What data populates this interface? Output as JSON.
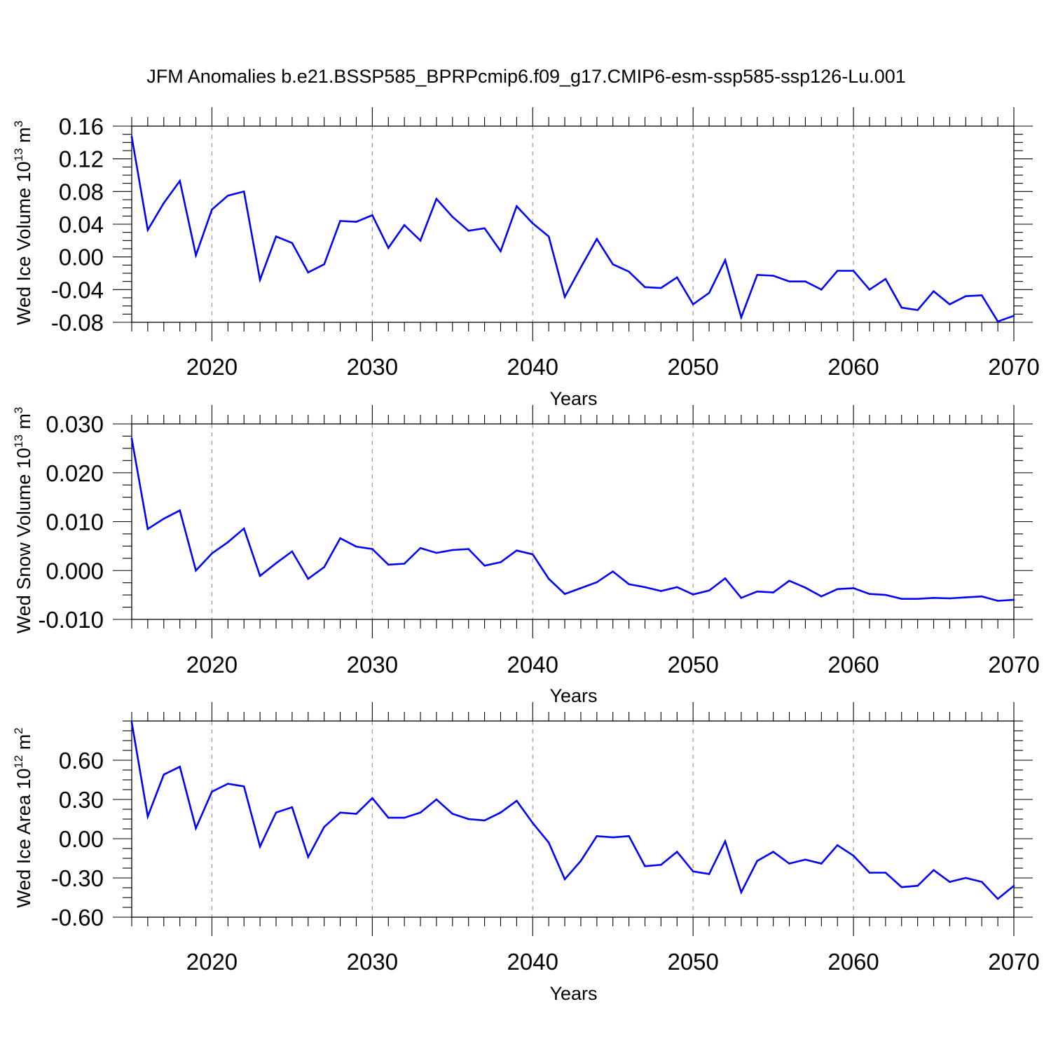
{
  "title": "JFM Anomalies b.e21.BSSP585_BPRPcmip6.f09_g17.CMIP6-esm-ssp585-ssp126-Lu.001",
  "colors": {
    "series": "#0000ff",
    "axis": "#000000",
    "gridline": "#999999"
  },
  "chart_data": [
    {
      "type": "line",
      "ylabel": {
        "main": "Wed Ice Volume 10",
        "sup": "13",
        "unit": " m",
        "unit_sup": "3"
      },
      "xlabel": "Years",
      "xlim": [
        2015,
        2070
      ],
      "ylim": [
        -0.08,
        0.16
      ],
      "xticks": [
        2020,
        2030,
        2040,
        2050,
        2060,
        2070
      ],
      "yticks": [
        "0.16",
        "0.12",
        "0.08",
        "0.04",
        "0.00",
        "-0.04",
        "-0.08"
      ],
      "ytick_values": [
        0.16,
        0.12,
        0.08,
        0.04,
        0.0,
        -0.04,
        -0.08
      ],
      "grid": "vertical dashed at major x ticks",
      "x": [
        2015,
        2016,
        2017,
        2018,
        2019,
        2020,
        2021,
        2022,
        2023,
        2024,
        2025,
        2026,
        2027,
        2028,
        2029,
        2030,
        2031,
        2032,
        2033,
        2034,
        2035,
        2036,
        2037,
        2038,
        2039,
        2040,
        2041,
        2042,
        2043,
        2044,
        2045,
        2046,
        2047,
        2048,
        2049,
        2050,
        2051,
        2052,
        2053,
        2054,
        2055,
        2056,
        2057,
        2058,
        2059,
        2060,
        2061,
        2062,
        2063,
        2064,
        2065,
        2066,
        2067,
        2068,
        2069,
        2070
      ],
      "y": [
        0.147,
        0.033,
        0.066,
        0.093,
        0.002,
        0.058,
        0.075,
        0.08,
        -0.028,
        0.025,
        0.017,
        -0.019,
        -0.009,
        0.044,
        0.043,
        0.051,
        0.011,
        0.039,
        0.02,
        0.071,
        0.049,
        0.032,
        0.035,
        0.007,
        0.062,
        0.041,
        0.025,
        -0.049,
        -0.013,
        0.022,
        -0.009,
        -0.018,
        -0.037,
        -0.038,
        -0.025,
        -0.058,
        -0.044,
        -0.004,
        -0.074,
        -0.022,
        -0.023,
        -0.03,
        -0.03,
        -0.04,
        -0.017,
        -0.017,
        -0.04,
        -0.027,
        -0.062,
        -0.065,
        -0.042,
        -0.058,
        -0.048,
        -0.047,
        -0.079,
        -0.072
      ]
    },
    {
      "type": "line",
      "ylabel": {
        "main": "Wed Snow Volume 10",
        "sup": "13",
        "unit": " m",
        "unit_sup": "3"
      },
      "xlabel": "Years",
      "xlim": [
        2015,
        2070
      ],
      "ylim": [
        -0.01,
        0.03
      ],
      "xticks": [
        2020,
        2030,
        2040,
        2050,
        2060,
        2070
      ],
      "yticks": [
        "0.030",
        "0.020",
        "0.010",
        "0.000",
        "-0.010"
      ],
      "ytick_values": [
        0.03,
        0.02,
        0.01,
        0.0,
        -0.01
      ],
      "grid": "vertical dashed at major x ticks",
      "x": [
        2015,
        2016,
        2017,
        2018,
        2019,
        2020,
        2021,
        2022,
        2023,
        2024,
        2025,
        2026,
        2027,
        2028,
        2029,
        2030,
        2031,
        2032,
        2033,
        2034,
        2035,
        2036,
        2037,
        2038,
        2039,
        2040,
        2041,
        2042,
        2043,
        2044,
        2045,
        2046,
        2047,
        2048,
        2049,
        2050,
        2051,
        2052,
        2053,
        2054,
        2055,
        2056,
        2057,
        2058,
        2059,
        2060,
        2061,
        2062,
        2063,
        2064,
        2065,
        2066,
        2067,
        2068,
        2069,
        2070
      ],
      "y": [
        0.027,
        0.0085,
        0.0106,
        0.0123,
        0.0,
        0.0035,
        0.0058,
        0.0086,
        -0.0011,
        0.0015,
        0.0039,
        -0.0017,
        0.0007,
        0.0066,
        0.0049,
        0.0044,
        0.0012,
        0.0014,
        0.0046,
        0.0036,
        0.0042,
        0.0044,
        0.001,
        0.0017,
        0.0041,
        0.0033,
        -0.0017,
        -0.0048,
        -0.0036,
        -0.0024,
        -0.0002,
        -0.0028,
        -0.0034,
        -0.0042,
        -0.0034,
        -0.0049,
        -0.0041,
        -0.0016,
        -0.0056,
        -0.0043,
        -0.0045,
        -0.0021,
        -0.0035,
        -0.0053,
        -0.0038,
        -0.0036,
        -0.0048,
        -0.005,
        -0.0058,
        -0.0058,
        -0.0056,
        -0.0057,
        -0.0055,
        -0.0053,
        -0.0062,
        -0.006
      ]
    },
    {
      "type": "line",
      "ylabel": {
        "main": "Wed Ice Area 10",
        "sup": "12",
        "unit": " m",
        "unit_sup": "2"
      },
      "xlabel": "Years",
      "xlim": [
        2015,
        2070
      ],
      "ylim": [
        -0.6,
        0.9
      ],
      "xticks": [
        2020,
        2030,
        2040,
        2050,
        2060,
        2070
      ],
      "yticks": [
        "0.60",
        "0.30",
        "0.00",
        "-0.30",
        "-0.60"
      ],
      "ytick_values": [
        0.6,
        0.3,
        0.0,
        -0.3,
        -0.6
      ],
      "grid": "vertical dashed at major x ticks",
      "x": [
        2015,
        2016,
        2017,
        2018,
        2019,
        2020,
        2021,
        2022,
        2023,
        2024,
        2025,
        2026,
        2027,
        2028,
        2029,
        2030,
        2031,
        2032,
        2033,
        2034,
        2035,
        2036,
        2037,
        2038,
        2039,
        2040,
        2041,
        2042,
        2043,
        2044,
        2045,
        2046,
        2047,
        2048,
        2049,
        2050,
        2051,
        2052,
        2053,
        2054,
        2055,
        2056,
        2057,
        2058,
        2059,
        2060,
        2061,
        2062,
        2063,
        2064,
        2065,
        2066,
        2067,
        2068,
        2069,
        2070
      ],
      "y": [
        0.89,
        0.17,
        0.49,
        0.55,
        0.08,
        0.36,
        0.42,
        0.4,
        -0.06,
        0.2,
        0.24,
        -0.14,
        0.09,
        0.2,
        0.19,
        0.31,
        0.16,
        0.16,
        0.2,
        0.3,
        0.19,
        0.15,
        0.14,
        0.2,
        0.29,
        0.12,
        -0.03,
        -0.31,
        -0.17,
        0.02,
        0.01,
        0.02,
        -0.21,
        -0.2,
        -0.1,
        -0.25,
        -0.27,
        -0.02,
        -0.41,
        -0.17,
        -0.1,
        -0.19,
        -0.16,
        -0.19,
        -0.05,
        -0.13,
        -0.26,
        -0.26,
        -0.37,
        -0.36,
        -0.24,
        -0.33,
        -0.3,
        -0.33,
        -0.46,
        -0.36
      ]
    }
  ]
}
